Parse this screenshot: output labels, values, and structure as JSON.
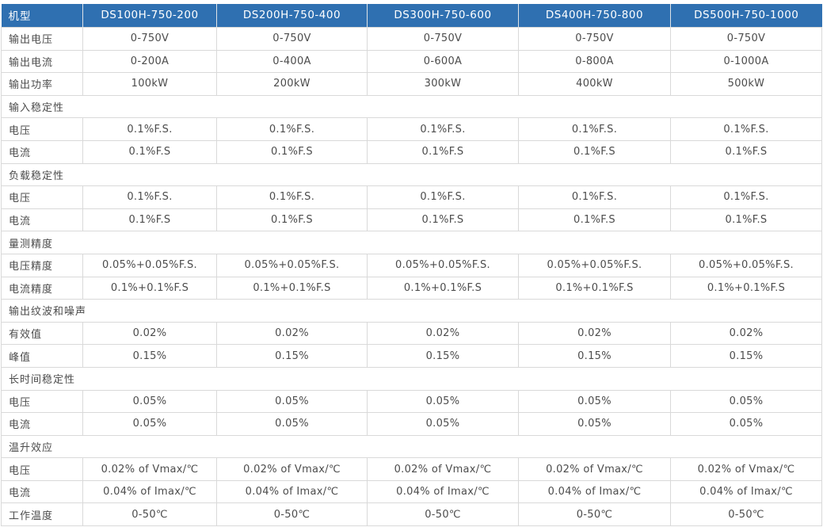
{
  "colors": {
    "header_bg": "#2f70b1",
    "header_text": "#ffffff",
    "header_divider": "#dfe3e6",
    "body_border": "#d9d9d9",
    "body_text": "#4c4c4c",
    "row_bg": "#ffffff"
  },
  "table": {
    "header": {
      "label": "机型",
      "models": [
        "DS100H-750-200",
        "DS200H-750-400",
        "DS300H-750-600",
        "DS400H-750-800",
        "DS500H-750-1000"
      ]
    },
    "rows": [
      {
        "type": "data",
        "label": "输出电压",
        "values": [
          "0-750V",
          "0-750V",
          "0-750V",
          "0-750V",
          "0-750V"
        ]
      },
      {
        "type": "data",
        "label": "输出电流",
        "values": [
          "0-200A",
          "0-400A",
          "0-600A",
          "0-800A",
          "0-1000A"
        ]
      },
      {
        "type": "data",
        "label": "输出功率",
        "values": [
          "100kW",
          "200kW",
          "300kW",
          "400kW",
          "500kW"
        ]
      },
      {
        "type": "section",
        "label": "输入稳定性"
      },
      {
        "type": "data",
        "label": "电压",
        "values": [
          "0.1%F.S.",
          "0.1%F.S.",
          "0.1%F.S.",
          "0.1%F.S.",
          "0.1%F.S."
        ]
      },
      {
        "type": "data",
        "label": "电流",
        "values": [
          "0.1%F.S",
          "0.1%F.S",
          "0.1%F.S",
          "0.1%F.S",
          "0.1%F.S"
        ]
      },
      {
        "type": "section",
        "label": "负载稳定性"
      },
      {
        "type": "data",
        "label": "电压",
        "values": [
          "0.1%F.S.",
          "0.1%F.S.",
          "0.1%F.S.",
          "0.1%F.S.",
          "0.1%F.S."
        ]
      },
      {
        "type": "data",
        "label": "电流",
        "values": [
          "0.1%F.S",
          "0.1%F.S",
          "0.1%F.S",
          "0.1%F.S",
          "0.1%F.S"
        ]
      },
      {
        "type": "section",
        "label": "量测精度"
      },
      {
        "type": "data",
        "label": "电压精度",
        "values": [
          "0.05%+0.05%F.S.",
          "0.05%+0.05%F.S.",
          "0.05%+0.05%F.S.",
          "0.05%+0.05%F.S.",
          "0.05%+0.05%F.S."
        ]
      },
      {
        "type": "data",
        "label": "电流精度",
        "values": [
          "0.1%+0.1%F.S",
          "0.1%+0.1%F.S",
          "0.1%+0.1%F.S",
          "0.1%+0.1%F.S",
          "0.1%+0.1%F.S"
        ]
      },
      {
        "type": "section",
        "label": "输出纹波和噪声"
      },
      {
        "type": "data",
        "label": "有效值",
        "values": [
          "0.02%",
          "0.02%",
          "0.02%",
          "0.02%",
          "0.02%"
        ]
      },
      {
        "type": "data",
        "label": "峰值",
        "values": [
          "0.15%",
          "0.15%",
          "0.15%",
          "0.15%",
          "0.15%"
        ]
      },
      {
        "type": "section",
        "label": "长时间稳定性"
      },
      {
        "type": "data",
        "label": "电压",
        "values": [
          "0.05%",
          "0.05%",
          "0.05%",
          "0.05%",
          "0.05%"
        ]
      },
      {
        "type": "data",
        "label": "电流",
        "values": [
          "0.05%",
          "0.05%",
          "0.05%",
          "0.05%",
          "0.05%"
        ]
      },
      {
        "type": "section",
        "label": "温升效应"
      },
      {
        "type": "data",
        "label": "电压",
        "values": [
          "0.02% of Vmax/℃",
          "0.02% of Vmax/℃",
          "0.02% of Vmax/℃",
          "0.02% of Vmax/℃",
          "0.02% of Vmax/℃"
        ]
      },
      {
        "type": "data",
        "label": "电流",
        "values": [
          "0.04% of Imax/℃",
          "0.04% of Imax/℃",
          "0.04% of Imax/℃",
          "0.04% of Imax/℃",
          "0.04% of Imax/℃"
        ]
      },
      {
        "type": "data",
        "label": "工作温度",
        "values": [
          "0-50℃",
          "0-50℃",
          "0-50℃",
          "0-50℃",
          "0-50℃"
        ]
      }
    ]
  }
}
